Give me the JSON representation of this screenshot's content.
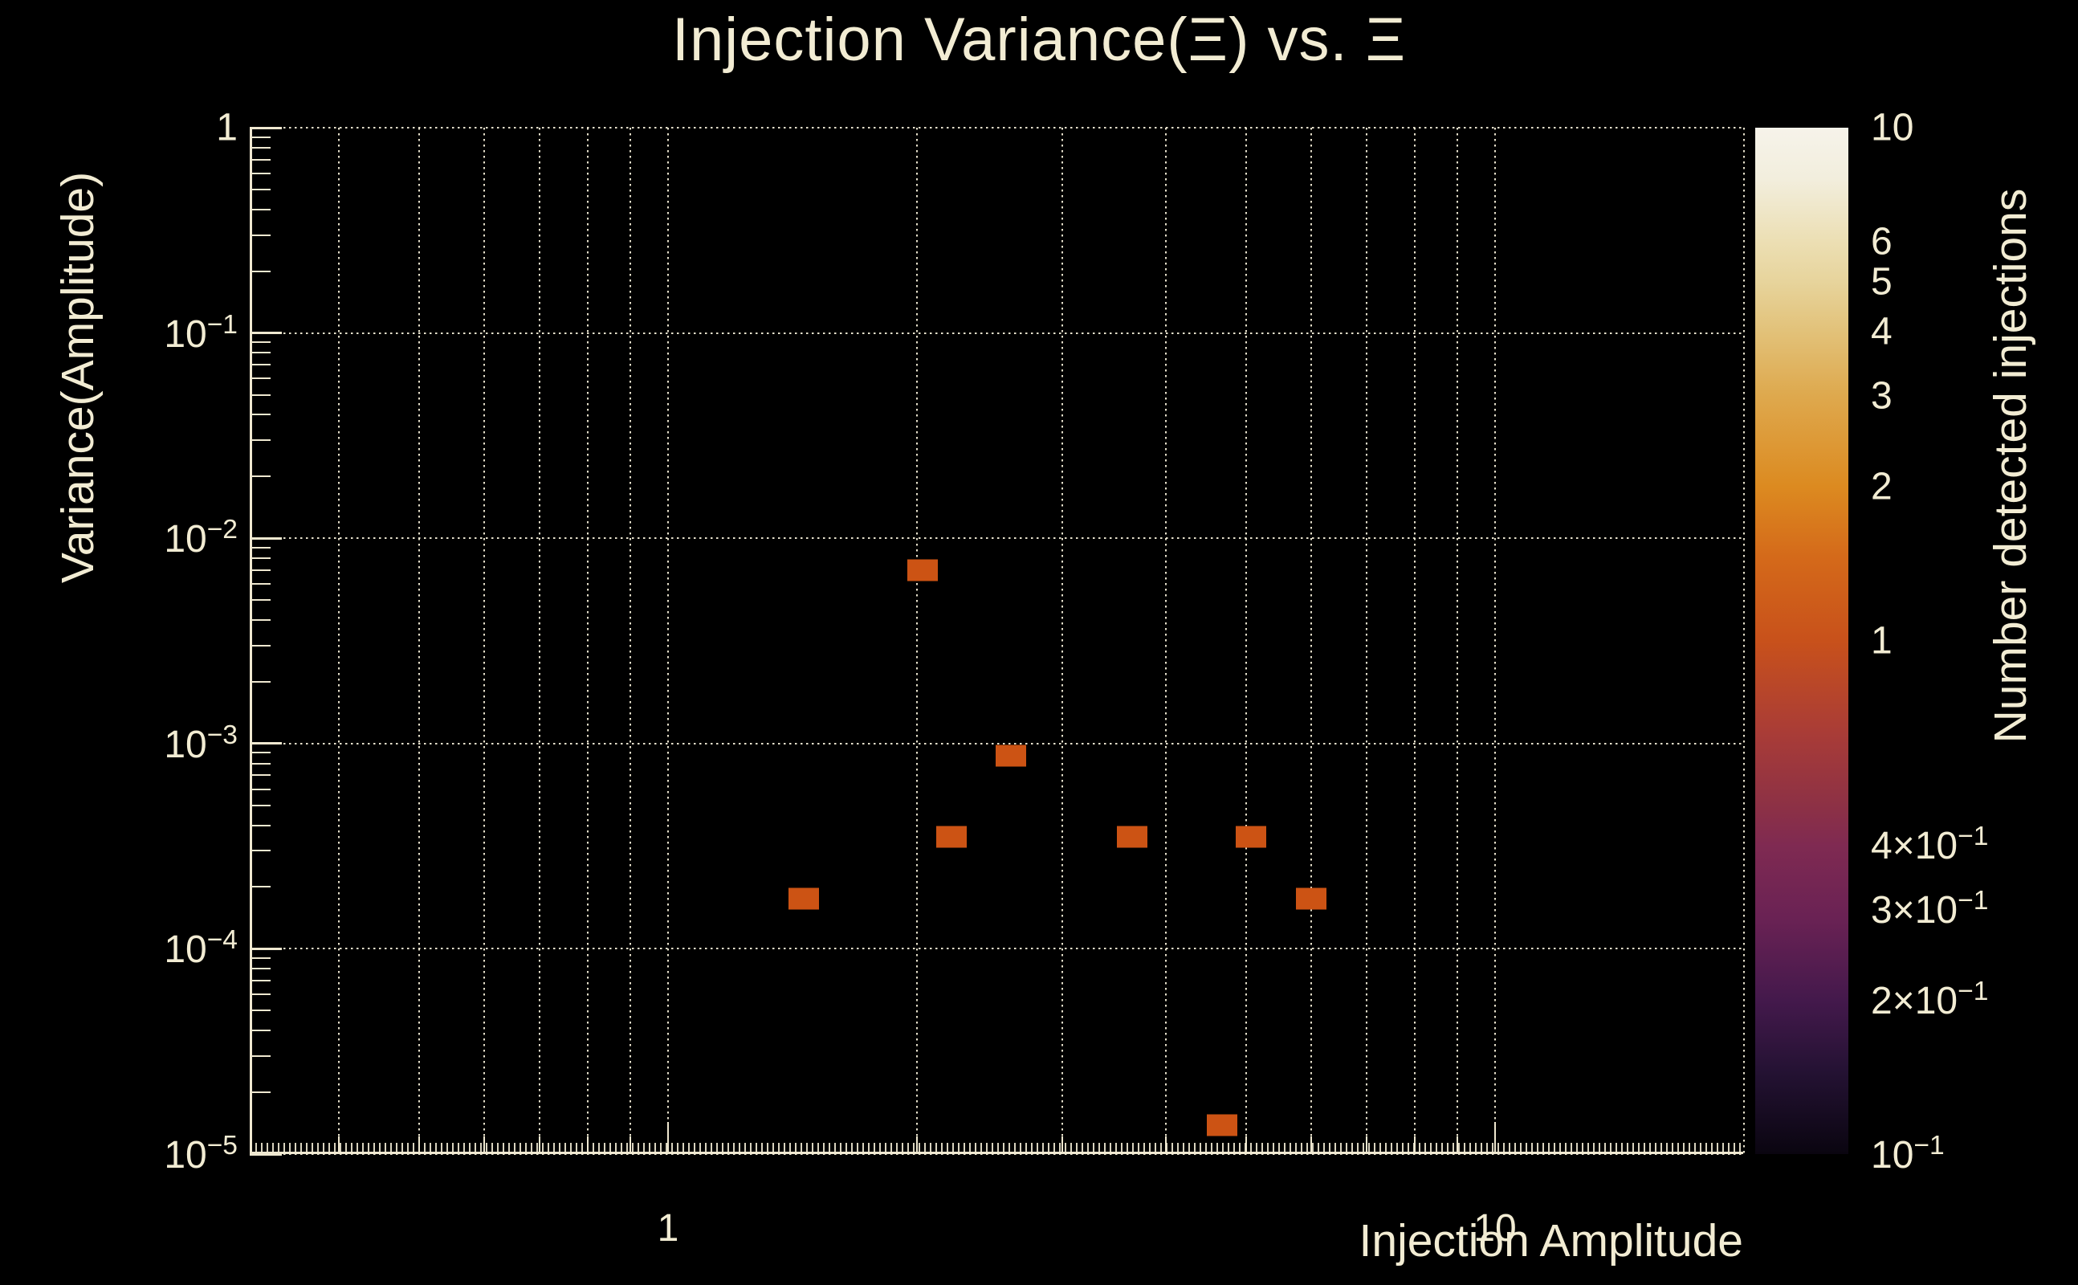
{
  "page": {
    "background": "#000000",
    "text_color": "#f2ecd3",
    "axis_color": "#efe8d0",
    "grid_color": "rgba(242,236,214,0.95)"
  },
  "chart_data": {
    "type": "heatmap",
    "title": "Injection Variance(Ξ) vs. Ξ",
    "xlabel": "Injection Amplitude",
    "ylabel": "Variance(Amplitude)",
    "colorbar_label": "Number detected injections",
    "x_scale": "log",
    "y_scale": "log",
    "z_scale": "log",
    "xlim": [
      0.312,
      19.9
    ],
    "ylim": [
      1e-05,
      1
    ],
    "zlim": [
      0.1,
      10
    ],
    "grid": true,
    "legend_position": "right-colorbar",
    "point_color": "#cc5314",
    "points": [
      {
        "x": 2.03,
        "y": 0.007,
        "count": 1
      },
      {
        "x": 1.46,
        "y": 0.000175,
        "count": 1
      },
      {
        "x": 2.2,
        "y": 0.00035,
        "count": 1
      },
      {
        "x": 2.6,
        "y": 0.00087,
        "count": 1
      },
      {
        "x": 3.64,
        "y": 0.00035,
        "count": 1
      },
      {
        "x": 5.07,
        "y": 0.00035,
        "count": 1
      },
      {
        "x": 5.99,
        "y": 0.000175,
        "count": 1
      },
      {
        "x": 4.68,
        "y": 1.38e-05,
        "count": 1
      }
    ],
    "x_ticks": [
      {
        "v": 1,
        "label": "1"
      },
      {
        "v": 10,
        "label": "10"
      }
    ],
    "x_gridlines": [
      0.4,
      0.5,
      0.6,
      0.7,
      0.8,
      0.9,
      1,
      2,
      3,
      4,
      5,
      6,
      7,
      8,
      9,
      10,
      20
    ],
    "y_ticks": [
      {
        "v": 1,
        "label": "1"
      },
      {
        "v": 0.1,
        "label": "10^−1"
      },
      {
        "v": 0.01,
        "label": "10^−2"
      },
      {
        "v": 0.001,
        "label": "10^−3"
      },
      {
        "v": 0.0001,
        "label": "10^−4"
      },
      {
        "v": 1e-05,
        "label": "10^−5"
      }
    ],
    "y_gridlines": [
      1,
      0.1,
      0.01,
      0.001,
      0.0001,
      1e-05
    ],
    "colorbar_ticks": [
      {
        "v": 10,
        "label": "10"
      },
      {
        "v": 6,
        "label": "6"
      },
      {
        "v": 5,
        "label": "5"
      },
      {
        "v": 4,
        "label": "4"
      },
      {
        "v": 3,
        "label": "3"
      },
      {
        "v": 2,
        "label": "2"
      },
      {
        "v": 1,
        "label": "1"
      },
      {
        "v": 0.4,
        "label": "4×10^−1"
      },
      {
        "v": 0.3,
        "label": "3×10^−1"
      },
      {
        "v": 0.2,
        "label": "2×10^−1"
      },
      {
        "v": 0.1,
        "label": "10^−1"
      }
    ],
    "colorbar_minor_ticks": [
      9,
      8,
      7,
      6,
      5,
      4,
      3,
      2,
      0.9,
      0.8,
      0.7,
      0.6,
      0.5,
      0.4,
      0.3,
      0.2
    ],
    "colormap_stops": [
      {
        "pos": 0,
        "color": "#f6f3ea"
      },
      {
        "pos": 5,
        "color": "#f2eedd"
      },
      {
        "pos": 11,
        "color": "#ecdfb4"
      },
      {
        "pos": 15,
        "color": "#e7d49c"
      },
      {
        "pos": 20,
        "color": "#e2c178"
      },
      {
        "pos": 26,
        "color": "#dea94e"
      },
      {
        "pos": 35,
        "color": "#dc8a20"
      },
      {
        "pos": 42,
        "color": "#d4691a"
      },
      {
        "pos": 50,
        "color": "#c8511b"
      },
      {
        "pos": 59,
        "color": "#a93c37"
      },
      {
        "pos": 66,
        "color": "#8d3145"
      },
      {
        "pos": 70,
        "color": "#7f2a52"
      },
      {
        "pos": 77,
        "color": "#6a2254"
      },
      {
        "pos": 85,
        "color": "#44194c"
      },
      {
        "pos": 92,
        "color": "#241233"
      },
      {
        "pos": 100,
        "color": "#0a0510"
      }
    ]
  }
}
